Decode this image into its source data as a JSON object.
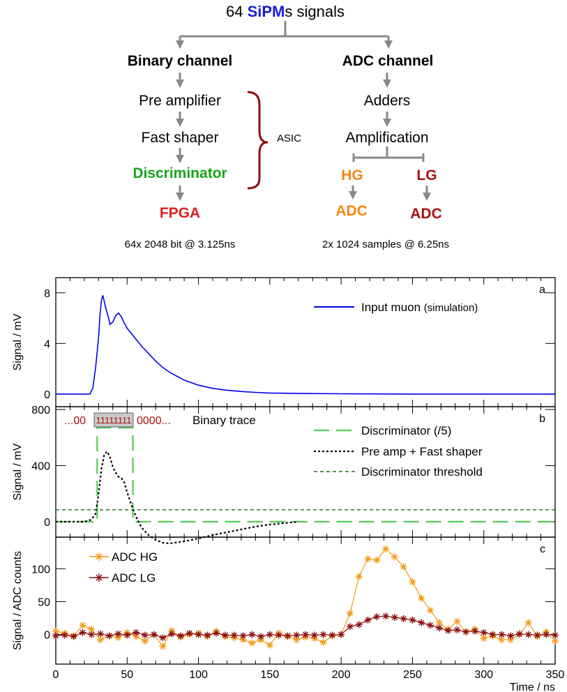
{
  "diagram": {
    "title_prefix": "64 ",
    "title_highlight": "SiPM",
    "title_suffix": "s signals",
    "binary": {
      "header": "Binary channel",
      "step1": "Pre amplifier",
      "step2": "Fast shaper",
      "step3": "Discriminator",
      "step4": "FPGA",
      "spec": "64x 2048 bit @ 3.125ns"
    },
    "asic_label": "ASIC",
    "adc": {
      "header": "ADC channel",
      "step1": "Adders",
      "step2": "Amplification",
      "hg": "HG",
      "lg": "LG",
      "hg_out": "ADC",
      "lg_out": "ADC",
      "spec": "2x 1024 samples @ 6.25ns"
    },
    "colors": {
      "sipm": "#1a1adb",
      "discriminator": "#1aa31a",
      "fpga": "#e02020",
      "hg": "#f5870f",
      "lg": "#a81010",
      "brace": "#8b0e0e",
      "arrow": "#888888"
    }
  },
  "chart_data": [
    {
      "type": "line",
      "panel_label": "a",
      "ylabel": "Signal / mV",
      "xlim": [
        0,
        350
      ],
      "ylim": [
        -1,
        9.2
      ],
      "yticks": [
        0,
        4,
        8
      ],
      "legend": [
        {
          "name": "Input muon",
          "note": "(simulation)",
          "color": "#0000ee",
          "style": "solid"
        }
      ],
      "series": [
        {
          "name": "Input muon",
          "color": "#0000ee",
          "x": [
            0,
            24,
            26,
            28,
            30,
            31,
            32,
            33,
            35,
            37,
            38,
            40,
            42,
            44,
            46,
            48,
            50,
            55,
            60,
            65,
            70,
            75,
            80,
            90,
            100,
            110,
            120,
            130,
            140,
            150,
            175,
            200,
            250,
            300,
            350
          ],
          "y": [
            0,
            0,
            0.5,
            2.2,
            4.5,
            6.3,
            7.4,
            7.8,
            6.8,
            6.0,
            5.5,
            5.7,
            6.2,
            6.4,
            6.1,
            5.6,
            5.2,
            4.5,
            3.8,
            3.2,
            2.6,
            2.1,
            1.7,
            1.1,
            0.7,
            0.45,
            0.3,
            0.2,
            0.13,
            0.08,
            0.04,
            0.02,
            0.0,
            0.0,
            0.0
          ]
        }
      ]
    },
    {
      "type": "line",
      "panel_label": "b",
      "ylabel": "Signal / mV",
      "xlim": [
        0,
        350
      ],
      "ylim": [
        -110,
        820
      ],
      "yticks": [
        0,
        400,
        800
      ],
      "binary_trace": {
        "prefix": "...00",
        "ones": "11111111",
        "suffix": "0000...",
        "label": "Binary trace"
      },
      "threshold": 85,
      "legend": [
        {
          "name": "Discriminator (/5)",
          "color": "#55cc55",
          "style": "long-dash"
        },
        {
          "name": "Pre amp + Fast shaper",
          "color": "#000000",
          "style": "dotted"
        },
        {
          "name": "Discriminator threshold",
          "color": "#1a6e1a",
          "style": "short-dash"
        }
      ],
      "series": [
        {
          "name": "Discriminator (/5)",
          "color": "#55cc55",
          "x": [
            0,
            29,
            29,
            54,
            54,
            350
          ],
          "y": [
            0,
            0,
            670,
            670,
            0,
            0
          ]
        },
        {
          "name": "Pre amp + Fast shaper",
          "color": "#000000",
          "x": [
            0,
            20,
            25,
            28,
            30,
            32,
            34,
            36,
            38,
            40,
            42,
            44,
            46,
            48,
            50,
            53,
            56,
            60,
            65,
            70,
            75,
            80,
            90,
            100,
            110,
            120,
            130,
            140,
            150,
            170
          ],
          "y": [
            0,
            0,
            15,
            60,
            200,
            380,
            480,
            500,
            460,
            390,
            350,
            320,
            310,
            280,
            210,
            120,
            40,
            -40,
            -95,
            -130,
            -150,
            -155,
            -140,
            -120,
            -95,
            -75,
            -55,
            -35,
            -20,
            0
          ]
        },
        {
          "name": "Discriminator threshold",
          "color": "#1a6e1a",
          "x": [
            0,
            350
          ],
          "y": [
            85,
            85
          ]
        }
      ]
    },
    {
      "type": "line",
      "panel_label": "c",
      "ylabel": "Signal / ADC counts",
      "xlabel": "Time / ns",
      "xlim": [
        0,
        350
      ],
      "ylim": [
        -45,
        148
      ],
      "yticks": [
        0,
        50,
        100
      ],
      "xticks": [
        0,
        50,
        100,
        150,
        200,
        250,
        300,
        350
      ],
      "legend": [
        {
          "name": "ADC HG",
          "color": "#f59a1a",
          "marker": "star"
        },
        {
          "name": "ADC LG",
          "color": "#8b1010",
          "marker": "star"
        }
      ],
      "series": [
        {
          "name": "ADC HG",
          "color": "#f59a1a",
          "x": [
            0,
            6.25,
            12.5,
            18.75,
            25,
            31.25,
            37.5,
            43.75,
            50,
            56.25,
            62.5,
            68.75,
            75,
            81.25,
            87.5,
            93.75,
            100,
            106.25,
            112.5,
            118.75,
            125,
            131.25,
            137.5,
            143.75,
            150,
            156.25,
            162.5,
            168.75,
            175,
            181.25,
            187.5,
            193.75,
            200,
            206.25,
            212.5,
            218.75,
            225,
            231.25,
            237.5,
            243.75,
            250,
            256.25,
            262.5,
            268.75,
            275,
            281.25,
            287.5,
            293.75,
            300,
            306.25,
            312.5,
            318.75,
            325,
            331.25,
            337.5,
            343.75,
            350
          ],
          "y": [
            5,
            2,
            -2,
            14,
            8,
            -8,
            -2,
            -5,
            3,
            -3,
            -10,
            0,
            -18,
            6,
            -4,
            0,
            2,
            -3,
            5,
            -3,
            -5,
            -8,
            -13,
            -8,
            -16,
            2,
            -3,
            -8,
            -4,
            -6,
            -12,
            -2,
            0,
            32,
            88,
            115,
            113,
            130,
            118,
            103,
            80,
            55,
            37,
            18,
            8,
            20,
            4,
            8,
            -6,
            -2,
            -8,
            -8,
            0,
            18,
            -3,
            4,
            -10
          ]
        },
        {
          "name": "ADC LG",
          "color": "#8b1010",
          "x": [
            0,
            6.25,
            12.5,
            18.75,
            25,
            31.25,
            37.5,
            43.75,
            50,
            56.25,
            62.5,
            68.75,
            75,
            81.25,
            87.5,
            93.75,
            100,
            106.25,
            112.5,
            118.75,
            125,
            131.25,
            137.5,
            143.75,
            150,
            156.25,
            162.5,
            168.75,
            175,
            181.25,
            187.5,
            193.75,
            200,
            206.25,
            212.5,
            218.75,
            225,
            231.25,
            237.5,
            243.75,
            250,
            256.25,
            262.5,
            268.75,
            275,
            281.25,
            287.5,
            293.75,
            300,
            306.25,
            312.5,
            318.75,
            325,
            331.25,
            337.5,
            343.75,
            350
          ],
          "y": [
            -2,
            -1,
            -3,
            3,
            0,
            1,
            -2,
            1,
            -1,
            3,
            -1,
            0,
            -5,
            1,
            -2,
            2,
            0,
            -1,
            2,
            -1,
            -1,
            -2,
            0,
            -3,
            0,
            -1,
            -2,
            -1,
            0,
            -1,
            0,
            -1,
            0,
            12,
            15,
            22,
            27,
            28,
            26,
            24,
            22,
            18,
            14,
            10,
            6,
            7,
            4,
            5,
            3,
            0,
            0,
            -2,
            1,
            0,
            -1,
            0,
            -1
          ]
        }
      ]
    }
  ]
}
